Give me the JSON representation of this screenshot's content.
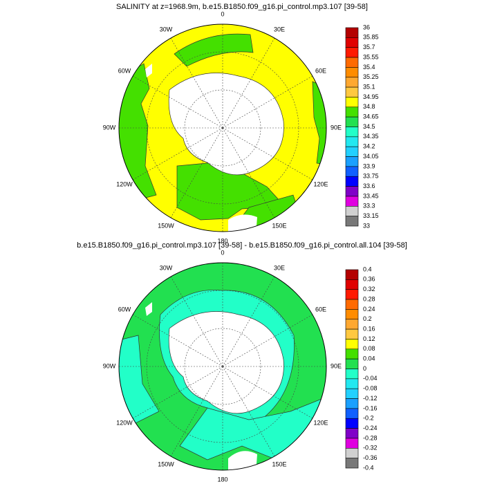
{
  "panels": [
    {
      "title": "SALINITY at z=1968.9m, b.e15.B1850.f09_g16.pi_control.mp3.107 [39-58]",
      "lon_labels": [
        "0",
        "30E",
        "60E",
        "90E",
        "120E",
        "150E",
        "180",
        "150W",
        "120W",
        "90W",
        "60W",
        "30W"
      ],
      "colorbar": {
        "levels": [
          36,
          35.85,
          35.7,
          35.55,
          35.4,
          35.25,
          35.1,
          34.95,
          34.8,
          34.65,
          34.5,
          34.35,
          34.2,
          34.05,
          33.9,
          33.75,
          33.6,
          33.45,
          33.3,
          33.15,
          33
        ],
        "colors": [
          "#b40000",
          "#e00000",
          "#ff1a00",
          "#ff6a00",
          "#ff8c00",
          "#ffa830",
          "#ffc840",
          "#ffff00",
          "#44e000",
          "#22e050",
          "#22ffc8",
          "#22e8f0",
          "#22d0ff",
          "#1aa0ff",
          "#1060ff",
          "#0000ff",
          "#8000c8",
          "#e000e0",
          "#d0d0d0",
          "#787878"
        ]
      }
    },
    {
      "title": "b.e15.B1850.f09_g16.pi_control.mp3.107 [39-58] - b.e15.B1850.f09_g16.pi_control.all.104 [39-58]",
      "lon_labels": [
        "0",
        "30E",
        "60E",
        "90E",
        "120E",
        "150E",
        "180",
        "150W",
        "120W",
        "90W",
        "60W",
        "30W"
      ],
      "colorbar": {
        "levels": [
          0.4,
          0.36,
          0.32,
          0.28,
          0.24,
          0.2,
          0.16,
          0.12,
          0.08,
          0.04,
          0,
          -0.04,
          -0.08,
          -0.12,
          -0.16,
          -0.2,
          -0.24,
          -0.28,
          -0.32,
          -0.36,
          -0.4
        ],
        "colors": [
          "#b40000",
          "#e00000",
          "#ff1a00",
          "#ff6a00",
          "#ff8c00",
          "#ffa830",
          "#ffc840",
          "#ffff00",
          "#44e000",
          "#22e050",
          "#22ffc8",
          "#22e8f0",
          "#22d0ff",
          "#1aa0ff",
          "#1060ff",
          "#0000ff",
          "#8000c8",
          "#e000e0",
          "#d0d0d0",
          "#787878"
        ]
      }
    }
  ]
}
